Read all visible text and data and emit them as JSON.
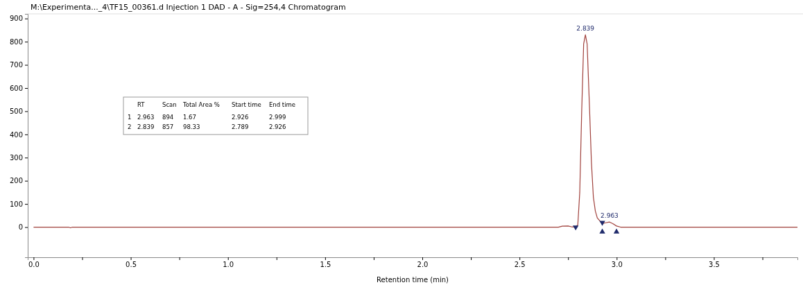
{
  "chart_data": {
    "type": "line",
    "title": "M:\\Experimenta..._4\\TF15_00361.d Injection 1 DAD - A - Sig=254,4 Chromatogram",
    "xlabel": "Retention time (min)",
    "xlim": [
      -0.03,
      3.93
    ],
    "ylim": [
      -130,
      920
    ],
    "xticks": [
      {
        "value": 0,
        "label": "0.0"
      },
      {
        "value": 0.25,
        "label": null
      },
      {
        "value": 0.5,
        "label": "0.5"
      },
      {
        "value": 0.75,
        "label": null
      },
      {
        "value": 1,
        "label": "1.0"
      },
      {
        "value": 1.25,
        "label": null
      },
      {
        "value": 1.5,
        "label": "1.5"
      },
      {
        "value": 1.75,
        "label": null
      },
      {
        "value": 2,
        "label": "2.0"
      },
      {
        "value": 2.25,
        "label": null
      },
      {
        "value": 2.5,
        "label": "2.5"
      },
      {
        "value": 2.75,
        "label": null
      },
      {
        "value": 3,
        "label": "3.0"
      },
      {
        "value": 3.25,
        "label": null
      },
      {
        "value": 3.5,
        "label": "3.5"
      },
      {
        "value": 3.75,
        "label": null
      }
    ],
    "yticks": [
      0,
      100,
      200,
      300,
      400,
      500,
      600,
      700,
      800,
      900
    ],
    "grid": false,
    "series": [
      {
        "color": "#a0413c",
        "marker": "none",
        "x": [
          0,
          0.18,
          0.19,
          0.2,
          2.7,
          2.72,
          2.75,
          2.77,
          2.789,
          2.8,
          2.81,
          2.82,
          2.83,
          2.839,
          2.848,
          2.86,
          2.87,
          2.88,
          2.89,
          2.9,
          2.915,
          2.926,
          2.94,
          2.963,
          2.98,
          2.999,
          3.02,
          3.93
        ],
        "values": [
          0,
          0,
          -3,
          0,
          0,
          4,
          5,
          1,
          0,
          10,
          150,
          500,
          790,
          830,
          790,
          520,
          280,
          130,
          70,
          40,
          25,
          15,
          18,
          22,
          15,
          5,
          0,
          0
        ]
      },
      {
        "type": "scatter",
        "color": "#1f2a6b",
        "marker": "triangle",
        "x": [
          2.789,
          2.926,
          2.926,
          2.999
        ],
        "values": [
          0,
          20,
          -20,
          -20
        ]
      }
    ],
    "annotations": [
      {
        "text": "2.839",
        "x": 2.839,
        "y": 830
      },
      {
        "text": "2.963",
        "x": 2.963,
        "y": 22
      },
      "\tRT\tScan\tTotal Area %\tStart time\tEnd time",
      "1\t2.963\t894\t1.67\t2.926\t2.999",
      "2\t2.839\t857\t98.33\t2.789\t2.926"
    ]
  }
}
